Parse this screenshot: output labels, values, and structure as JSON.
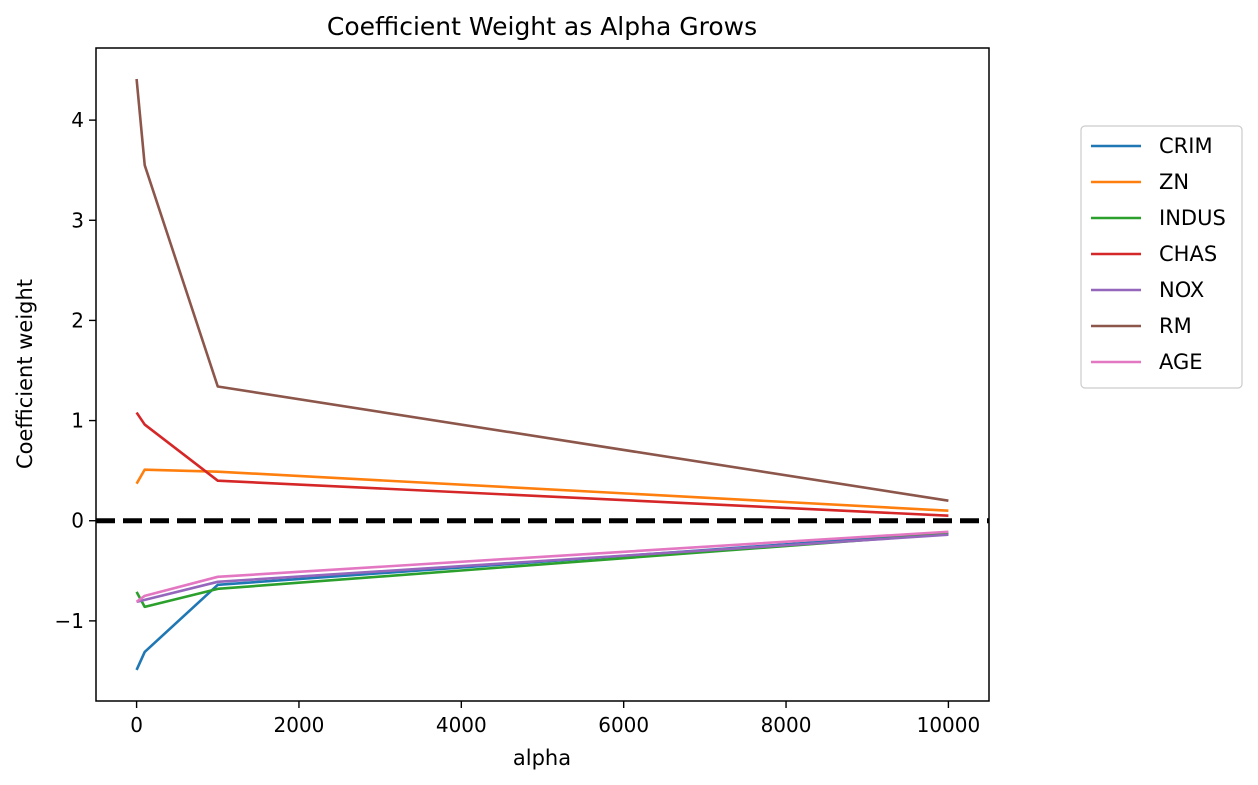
{
  "chart_data": {
    "type": "line",
    "title": "Coefficient Weight as Alpha Grows",
    "xlabel": "alpha",
    "ylabel": "Coefficient weight",
    "xlim": [
      -500,
      10500
    ],
    "ylim": [
      -1.8,
      4.72
    ],
    "xticks": [
      0,
      2000,
      4000,
      6000,
      8000,
      10000
    ],
    "xtick_labels": [
      "0",
      "2000",
      "4000",
      "6000",
      "8000",
      "10000"
    ],
    "yticks": [
      -1,
      0,
      1,
      2,
      3,
      4
    ],
    "ytick_labels": [
      "−1",
      "0",
      "1",
      "2",
      "3",
      "4"
    ],
    "x": [
      0.01,
      100,
      1000,
      10000
    ],
    "series": [
      {
        "name": "CRIM",
        "color": "#1f77b4",
        "values": [
          -1.49,
          -1.31,
          -0.64,
          -0.12
        ]
      },
      {
        "name": "ZN",
        "color": "#ff7f0e",
        "values": [
          0.37,
          0.51,
          0.49,
          0.1
        ]
      },
      {
        "name": "INDUS",
        "color": "#2ca02c",
        "values": [
          -0.71,
          -0.86,
          -0.68,
          -0.13
        ]
      },
      {
        "name": "CHAS",
        "color": "#d62728",
        "values": [
          1.08,
          0.96,
          0.4,
          0.05
        ]
      },
      {
        "name": "NOX",
        "color": "#9467bd",
        "values": [
          -0.81,
          -0.79,
          -0.61,
          -0.14
        ]
      },
      {
        "name": "RM",
        "color": "#8c564b",
        "values": [
          4.41,
          3.55,
          1.34,
          0.2
        ]
      },
      {
        "name": "AGE",
        "color": "#e377c2",
        "values": [
          -0.81,
          -0.75,
          -0.56,
          -0.11
        ]
      }
    ],
    "reference_line": {
      "y": 0,
      "color": "#000000",
      "style": "dashed"
    },
    "grid": false,
    "legend": "outside-right"
  }
}
